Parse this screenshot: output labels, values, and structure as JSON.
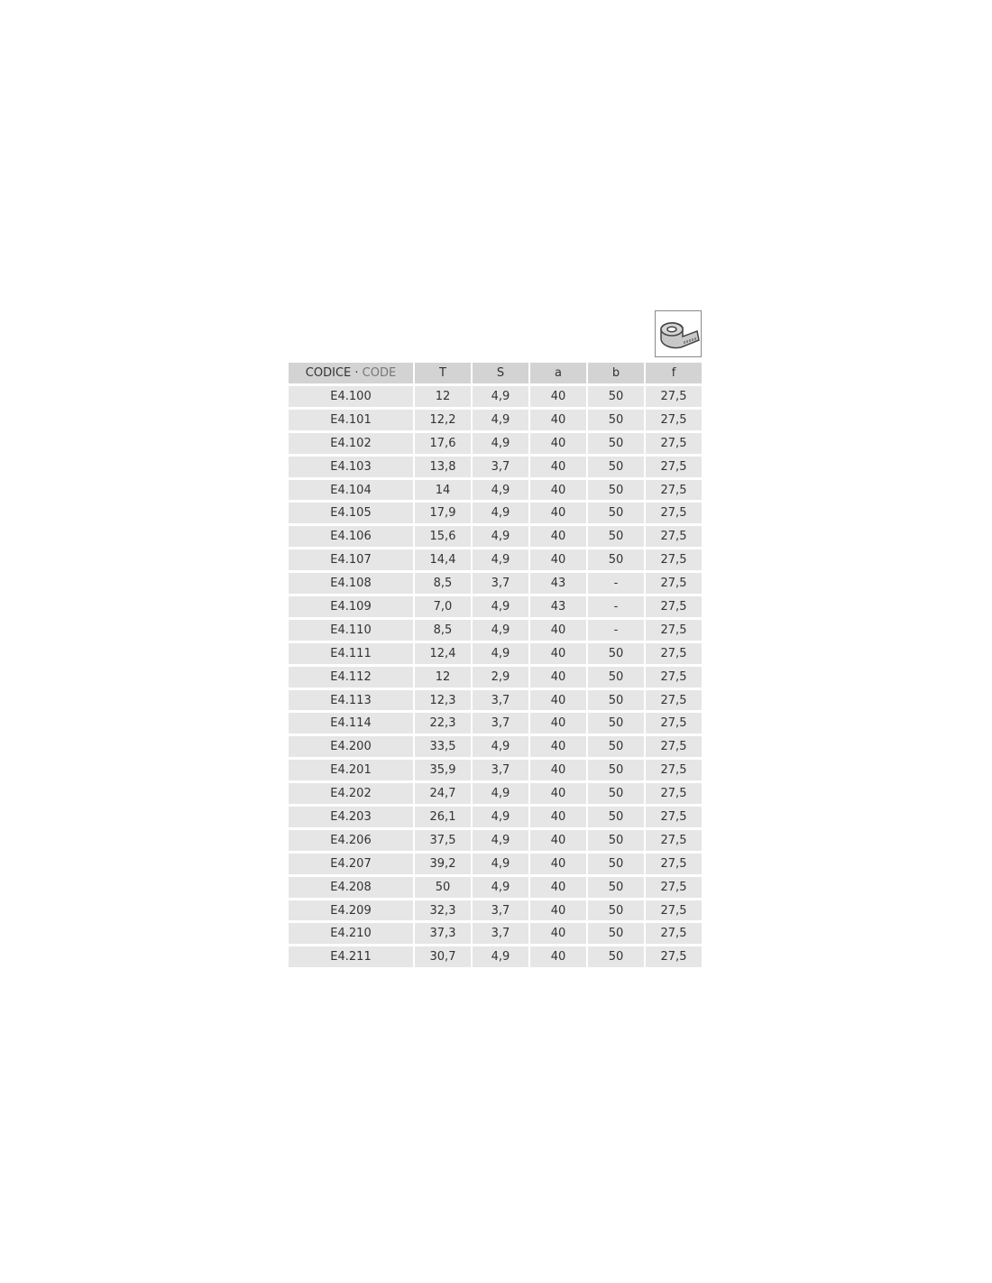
{
  "icon": "measuring-tape-icon",
  "header": {
    "codice": "CODICE",
    "sep": " · ",
    "code": "CODE",
    "cols": [
      "T",
      "S",
      "a",
      "b",
      "f"
    ]
  },
  "rows": [
    [
      "E4.100",
      "12",
      "4,9",
      "40",
      "50",
      "27,5"
    ],
    [
      "E4.101",
      "12,2",
      "4,9",
      "40",
      "50",
      "27,5"
    ],
    [
      "E4.102",
      "17,6",
      "4,9",
      "40",
      "50",
      "27,5"
    ],
    [
      "E4.103",
      "13,8",
      "3,7",
      "40",
      "50",
      "27,5"
    ],
    [
      "E4.104",
      "14",
      "4,9",
      "40",
      "50",
      "27,5"
    ],
    [
      "E4.105",
      "17,9",
      "4,9",
      "40",
      "50",
      "27,5"
    ],
    [
      "E4.106",
      "15,6",
      "4,9",
      "40",
      "50",
      "27,5"
    ],
    [
      "E4.107",
      "14,4",
      "4,9",
      "40",
      "50",
      "27,5"
    ],
    [
      "E4.108",
      "8,5",
      "3,7",
      "43",
      "-",
      "27,5"
    ],
    [
      "E4.109",
      "7,0",
      "4,9",
      "43",
      "-",
      "27,5"
    ],
    [
      "E4.110",
      "8,5",
      "4,9",
      "40",
      "-",
      "27,5"
    ],
    [
      "E4.111",
      "12,4",
      "4,9",
      "40",
      "50",
      "27,5"
    ],
    [
      "E4.112",
      "12",
      "2,9",
      "40",
      "50",
      "27,5"
    ],
    [
      "E4.113",
      "12,3",
      "3,7",
      "40",
      "50",
      "27,5"
    ],
    [
      "E4.114",
      "22,3",
      "3,7",
      "40",
      "50",
      "27,5"
    ],
    [
      "E4.200",
      "33,5",
      "4,9",
      "40",
      "50",
      "27,5"
    ],
    [
      "E4.201",
      "35,9",
      "3,7",
      "40",
      "50",
      "27,5"
    ],
    [
      "E4.202",
      "24,7",
      "4,9",
      "40",
      "50",
      "27,5"
    ],
    [
      "E4.203",
      "26,1",
      "4,9",
      "40",
      "50",
      "27,5"
    ],
    [
      "E4.206",
      "37,5",
      "4,9",
      "40",
      "50",
      "27,5"
    ],
    [
      "E4.207",
      "39,2",
      "4,9",
      "40",
      "50",
      "27,5"
    ],
    [
      "E4.208",
      "50",
      "4,9",
      "40",
      "50",
      "27,5"
    ],
    [
      "E4.209",
      "32,3",
      "3,7",
      "40",
      "50",
      "27,5"
    ],
    [
      "E4.210",
      "37,3",
      "3,7",
      "40",
      "50",
      "27,5"
    ],
    [
      "E4.211",
      "30,7",
      "4,9",
      "40",
      "50",
      "27,5"
    ]
  ]
}
